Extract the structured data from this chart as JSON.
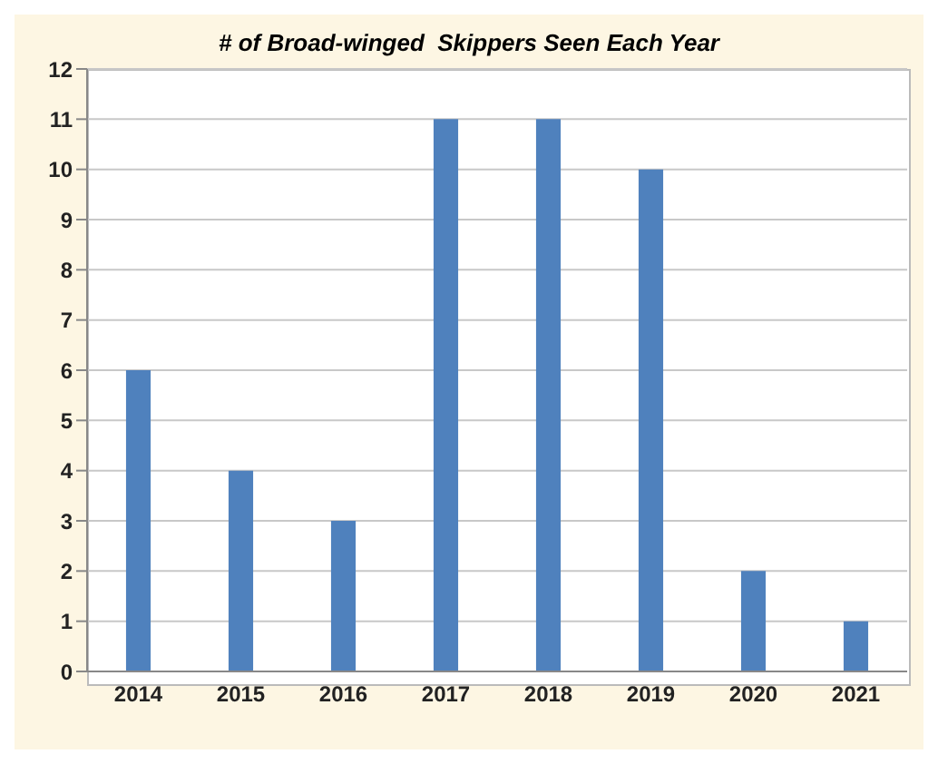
{
  "chart_data": {
    "type": "bar",
    "title": "# of Broad-winged  Skippers Seen Each Year",
    "categories": [
      "2014",
      "2015",
      "2016",
      "2017",
      "2018",
      "2019",
      "2020",
      "2021"
    ],
    "values": [
      6,
      4,
      3,
      11,
      11,
      10,
      2,
      1
    ],
    "color": "#4f81bd",
    "ylim": [
      0,
      12
    ],
    "yticks": [
      0,
      1,
      2,
      3,
      4,
      5,
      6,
      7,
      8,
      9,
      10,
      11,
      12
    ],
    "grid": "y"
  }
}
